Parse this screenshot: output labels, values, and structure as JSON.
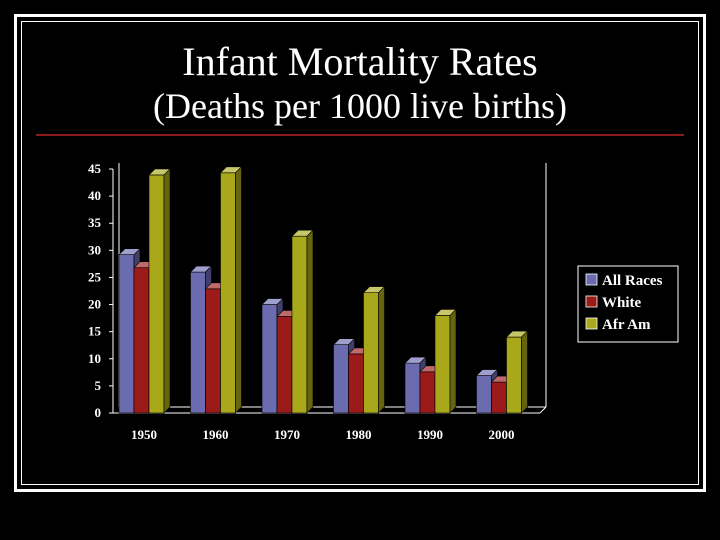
{
  "slide": {
    "title_line1": "Infant Mortality Rates",
    "title_line2": "(Deaths per 1000 live births)"
  },
  "colors": {
    "background": "#000000",
    "text": "#ffffff",
    "rule": "#8b1a1a"
  },
  "chart_data": {
    "type": "bar",
    "title": "",
    "xlabel": "",
    "ylabel": "",
    "categories": [
      "1950",
      "1960",
      "1970",
      "1980",
      "1990",
      "2000"
    ],
    "ylim": [
      0,
      45
    ],
    "yticks": [
      0,
      5,
      10,
      15,
      20,
      25,
      30,
      35,
      40,
      45
    ],
    "grid": false,
    "legend_position": "right",
    "three_d": true,
    "series": [
      {
        "name": "All Races",
        "color": "#6b6bb0",
        "values": [
          29.2,
          26.0,
          20.0,
          12.6,
          9.2,
          6.9
        ]
      },
      {
        "name": "White",
        "color": "#9b1a1a",
        "values": [
          26.8,
          22.9,
          17.8,
          10.9,
          7.6,
          5.7
        ]
      },
      {
        "name": "Afr Am",
        "color": "#a8a81a",
        "values": [
          43.9,
          44.3,
          32.6,
          22.2,
          18.0,
          14.0
        ]
      }
    ]
  }
}
